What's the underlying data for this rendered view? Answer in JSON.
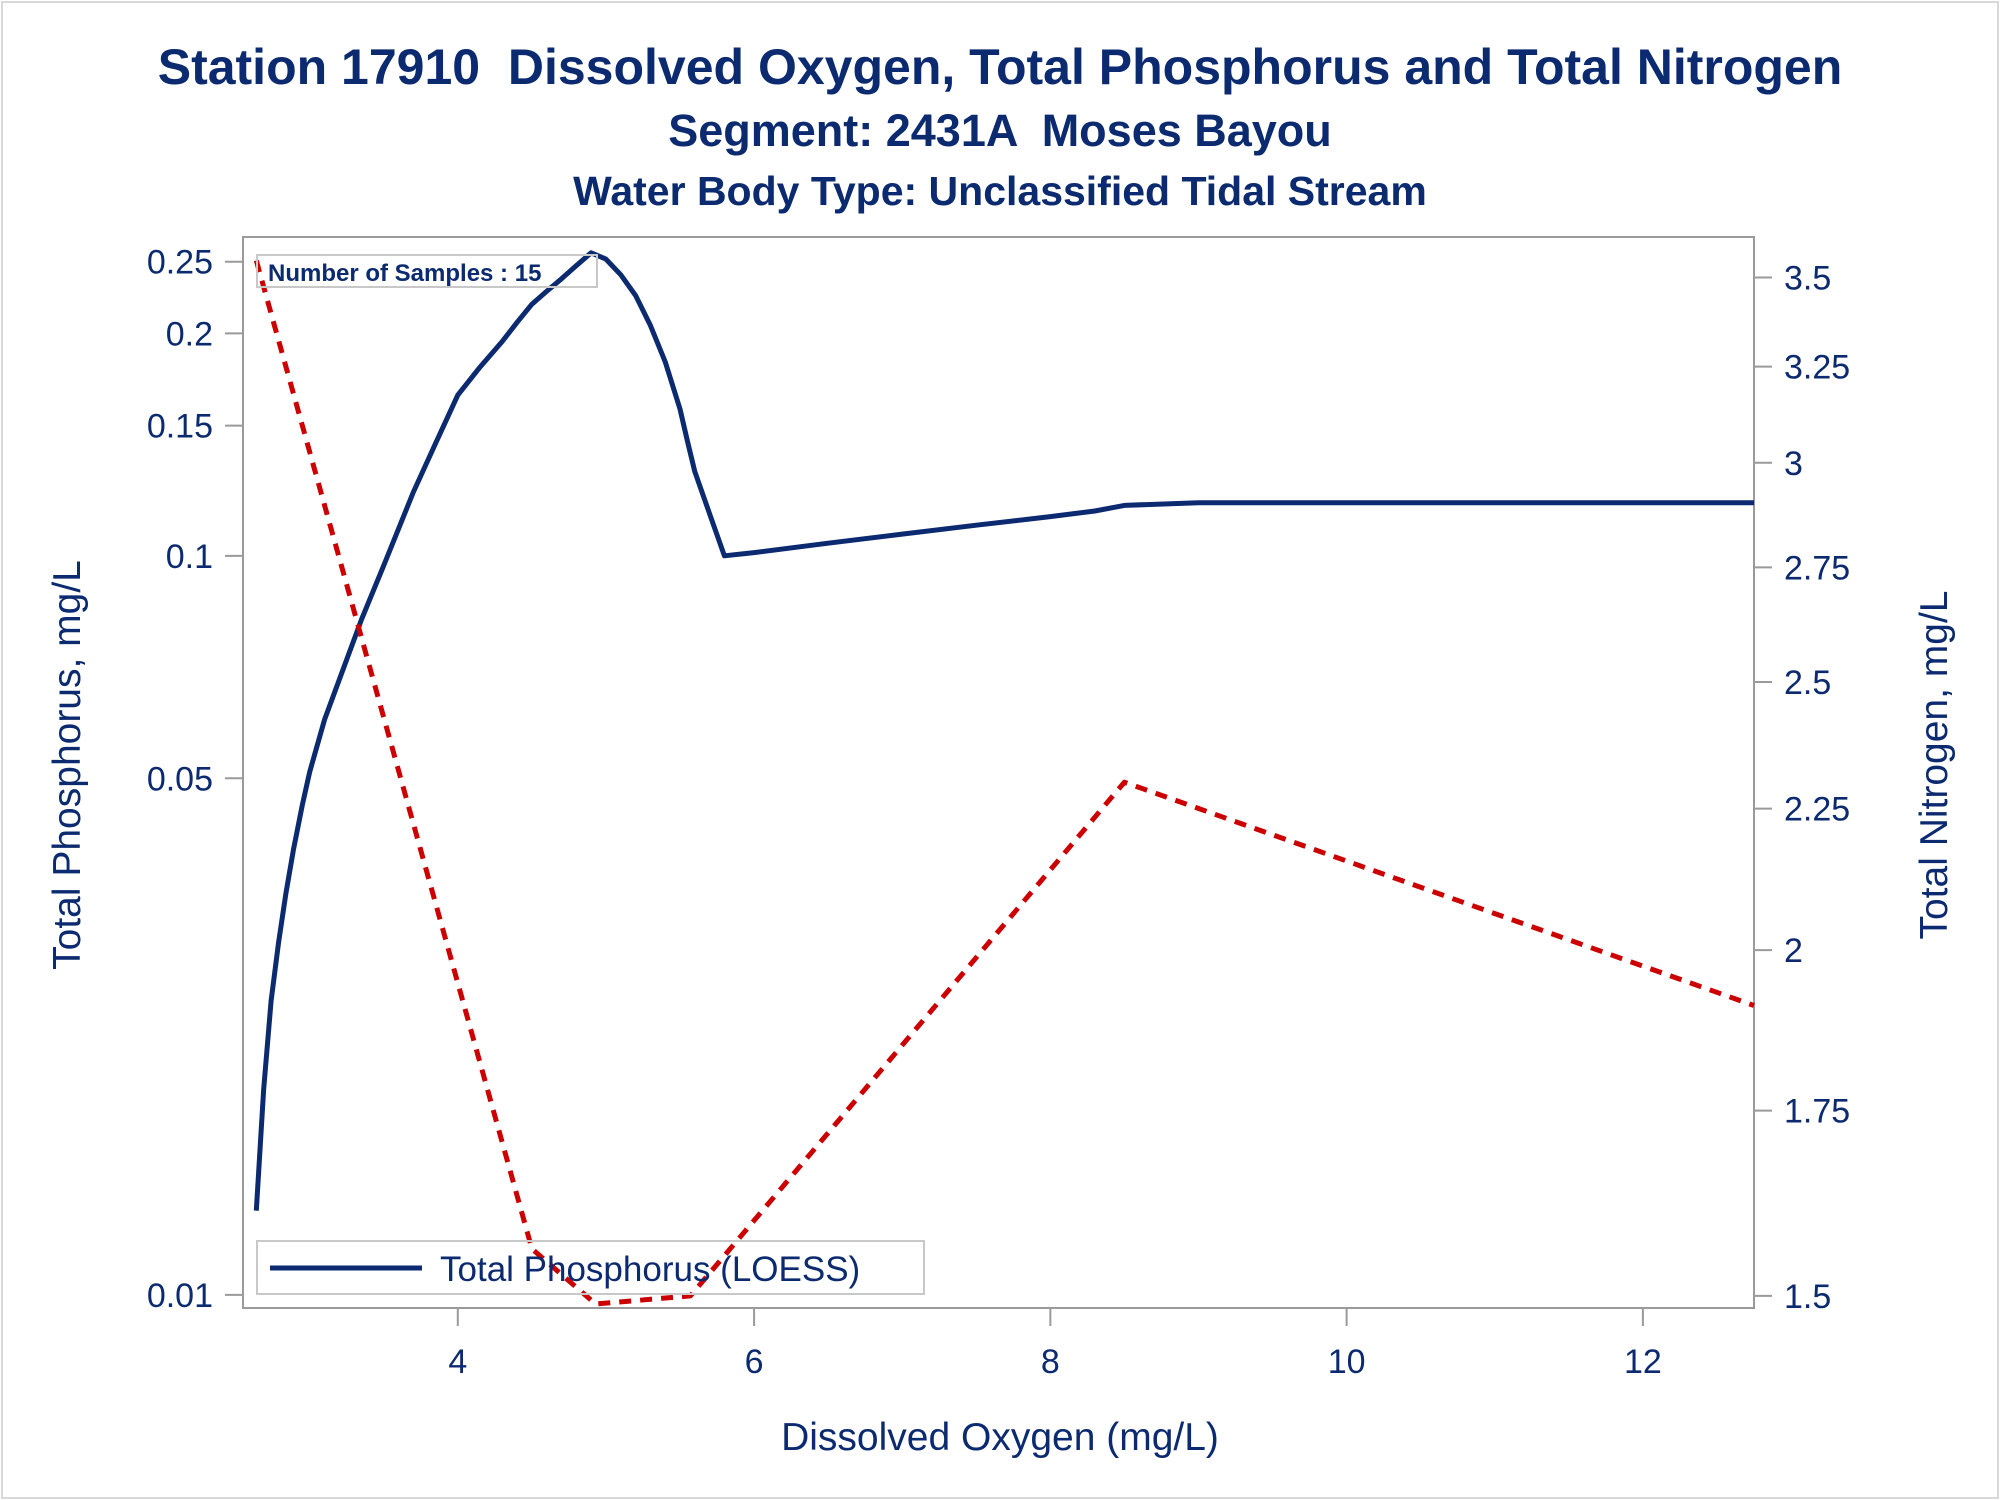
{
  "titles": {
    "line1": "Station 17910  Dissolved Oxygen, Total Phosphorus and Total Nitrogen",
    "line2": "Segment: 2431A  Moses Bayou",
    "line3": "Water Body Type: Unclassified Tidal Stream"
  },
  "inset_label": "Number of Samples : 15",
  "legend": {
    "label": "Total Phosphorus (LOESS)"
  },
  "colors": {
    "text": "#0b2a6f",
    "phosphorus": "#0b2a6f",
    "nitrogen": "#cc0000",
    "axis": "#9a9a9a",
    "background": "#ffffff"
  },
  "chart_data": {
    "type": "line",
    "xlabel": "Dissolved Oxygen (mg/L)",
    "ylabel_left": "Total Phosphorus, mg/L",
    "ylabel_right": "Total Nitrogen, mg/L",
    "x_ticks": [
      "4",
      "6",
      "8",
      "10",
      "12"
    ],
    "x_tick_values": [
      4,
      6,
      8,
      10,
      12
    ],
    "xlim": [
      2.55,
      12.75
    ],
    "left_axis_scale": "log",
    "left_ticks": [
      "0.25",
      "0.2",
      "0.15",
      "0.1",
      "0.05",
      "0.01"
    ],
    "left_tick_values": [
      0.25,
      0.2,
      0.15,
      0.1,
      0.05,
      0.01
    ],
    "ylim_left": [
      0.0096,
      0.27
    ],
    "right_ticks": [
      "3.5",
      "3.25",
      "3",
      "2.75",
      "2.5",
      "2.25",
      "2",
      "1.75",
      "1.5"
    ],
    "right_tick_values": [
      3.5,
      3.25,
      3,
      2.75,
      2.5,
      2.25,
      2,
      1.75,
      1.5
    ],
    "right_axis_scale": "log",
    "ylim_right": [
      1.485,
      3.62
    ],
    "grid": false,
    "legend_position": "bottom-left",
    "series": [
      {
        "name": "Total Phosphorus (LOESS)",
        "axis": "left",
        "style": "solid",
        "x": [
          2.64,
          2.69,
          2.74,
          2.79,
          2.84,
          2.89,
          2.95,
          3.0,
          3.1,
          3.2,
          3.35,
          3.5,
          3.7,
          3.85,
          4.0,
          4.15,
          4.3,
          4.4,
          4.5,
          4.6,
          4.7,
          4.8,
          4.9,
          5.0,
          5.1,
          5.2,
          5.3,
          5.4,
          5.5,
          5.55,
          5.6,
          5.7,
          5.8,
          6.0,
          6.5,
          7.0,
          7.5,
          8.0,
          8.3,
          8.5,
          9.0,
          9.5,
          10.0,
          11.0,
          12.0,
          12.3,
          12.75
        ],
        "y": [
          0.013,
          0.019,
          0.025,
          0.03,
          0.035,
          0.04,
          0.046,
          0.051,
          0.06,
          0.068,
          0.082,
          0.097,
          0.122,
          0.142,
          0.165,
          0.18,
          0.195,
          0.207,
          0.219,
          0.228,
          0.237,
          0.247,
          0.257,
          0.252,
          0.24,
          0.225,
          0.205,
          0.183,
          0.158,
          0.143,
          0.13,
          0.114,
          0.1,
          0.101,
          0.104,
          0.107,
          0.11,
          0.113,
          0.115,
          0.117,
          0.118,
          0.118,
          0.118,
          0.118,
          0.118,
          0.118,
          0.118
        ]
      },
      {
        "name": "",
        "axis": "right",
        "style": "dashed",
        "x": [
          2.64,
          4.5,
          4.93,
          5.57,
          8.5,
          12.75
        ],
        "y": [
          3.55,
          1.56,
          1.49,
          1.5,
          2.3,
          1.91
        ]
      }
    ]
  }
}
